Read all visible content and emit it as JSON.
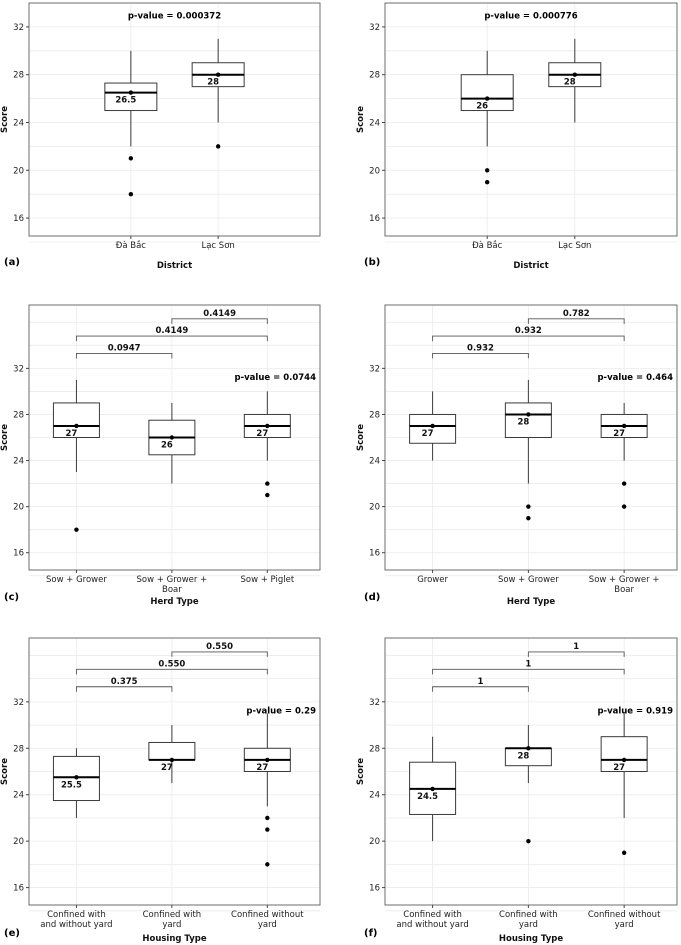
{
  "chart_data": [
    {
      "panel": "(a)",
      "type": "box",
      "title": "",
      "xlabel": "District",
      "ylabel": "Score",
      "ylim": [
        14.5,
        34
      ],
      "yticks": [
        16,
        20,
        24,
        28,
        32
      ],
      "pvalue": "p-value = 0.000372",
      "categories": [
        {
          "label": "Đà Bắc",
          "q1": 25,
          "median": 26.5,
          "q3": 27.3,
          "whisker_low": 22,
          "whisker_high": 30,
          "mean": 26.5,
          "median_label": "26.5",
          "outliers": [
            21,
            18
          ]
        },
        {
          "label": "Lạc Sơn",
          "q1": 27,
          "median": 28,
          "q3": 29,
          "whisker_low": 24,
          "whisker_high": 31,
          "mean": 28,
          "median_label": "28",
          "outliers": [
            22
          ]
        }
      ],
      "brackets": []
    },
    {
      "panel": "(b)",
      "type": "box",
      "title": "",
      "xlabel": "District",
      "ylabel": "Score",
      "ylim": [
        14.5,
        34
      ],
      "yticks": [
        16,
        20,
        24,
        28,
        32
      ],
      "pvalue": "p-value = 0.000776",
      "categories": [
        {
          "label": "Đà Bắc",
          "q1": 25,
          "median": 26,
          "q3": 28,
          "whisker_low": 22,
          "whisker_high": 30,
          "mean": 26,
          "median_label": "26",
          "outliers": [
            20,
            19
          ]
        },
        {
          "label": "Lạc Sơn",
          "q1": 27,
          "median": 28,
          "q3": 29,
          "whisker_low": 24,
          "whisker_high": 31,
          "mean": 28,
          "median_label": "28",
          "outliers": []
        }
      ],
      "brackets": []
    },
    {
      "panel": "(c)",
      "type": "box",
      "title": "",
      "xlabel": "Herd Type",
      "ylabel": "Score",
      "ylim": [
        14.5,
        37.5
      ],
      "yticks": [
        16,
        20,
        24,
        28,
        32
      ],
      "pvalue": "p-value = 0.0744",
      "categories": [
        {
          "label": "Sow + Grower",
          "q1": 26,
          "median": 27,
          "q3": 29,
          "whisker_low": 23,
          "whisker_high": 31,
          "mean": 27,
          "median_label": "27",
          "outliers": [
            18
          ]
        },
        {
          "label": "Sow + Grower + Boar",
          "q1": 24.5,
          "median": 26,
          "q3": 27.5,
          "whisker_low": 22,
          "whisker_high": 29,
          "mean": 26,
          "median_label": "26",
          "outliers": []
        },
        {
          "label": "Sow + Piglet",
          "q1": 26,
          "median": 27,
          "q3": 28,
          "whisker_low": 24,
          "whisker_high": 30,
          "mean": 27,
          "median_label": "27",
          "outliers": [
            22,
            21
          ]
        }
      ],
      "brackets": [
        {
          "from": 0,
          "to": 1,
          "y": 33.3,
          "label": "0.0947"
        },
        {
          "from": 0,
          "to": 2,
          "y": 34.8,
          "label": "0.4149"
        },
        {
          "from": 1,
          "to": 2,
          "y": 36.3,
          "label": "0.4149"
        }
      ]
    },
    {
      "panel": "(d)",
      "type": "box",
      "title": "",
      "xlabel": "Herd Type",
      "ylabel": "Score",
      "ylim": [
        14.5,
        37.5
      ],
      "yticks": [
        16,
        20,
        24,
        28,
        32
      ],
      "pvalue": "p-value = 0.464",
      "categories": [
        {
          "label": "Grower",
          "q1": 25.5,
          "median": 27,
          "q3": 28,
          "whisker_low": 24,
          "whisker_high": 30,
          "mean": 27,
          "median_label": "27",
          "outliers": []
        },
        {
          "label": "Sow + Grower",
          "q1": 26,
          "median": 28,
          "q3": 29,
          "whisker_low": 22,
          "whisker_high": 31,
          "mean": 28,
          "median_label": "28",
          "outliers": [
            20,
            19
          ]
        },
        {
          "label": "Sow + Grower + Boar",
          "q1": 26,
          "median": 27,
          "q3": 28,
          "whisker_low": 24,
          "whisker_high": 29,
          "mean": 27,
          "median_label": "27",
          "outliers": [
            22,
            20
          ]
        }
      ],
      "brackets": [
        {
          "from": 0,
          "to": 1,
          "y": 33.3,
          "label": "0.932"
        },
        {
          "from": 0,
          "to": 2,
          "y": 34.8,
          "label": "0.932"
        },
        {
          "from": 1,
          "to": 2,
          "y": 36.3,
          "label": "0.782"
        }
      ]
    },
    {
      "panel": "(e)",
      "type": "box",
      "title": "",
      "xlabel": "Housing Type",
      "ylabel": "Score",
      "ylim": [
        14.5,
        37.5
      ],
      "yticks": [
        16,
        20,
        24,
        28,
        32
      ],
      "pvalue": "p-value = 0.29",
      "categories": [
        {
          "label": "Confined with and without yard",
          "q1": 23.5,
          "median": 25.5,
          "q3": 27.3,
          "whisker_low": 22,
          "whisker_high": 28,
          "mean": 25.5,
          "median_label": "25.5",
          "outliers": []
        },
        {
          "label": "Confined with yard",
          "q1": 27,
          "median": 27,
          "q3": 28.5,
          "whisker_low": 25,
          "whisker_high": 30,
          "mean": 27,
          "median_label": "27",
          "outliers": []
        },
        {
          "label": "Confined without yard",
          "q1": 26,
          "median": 27,
          "q3": 28,
          "whisker_low": 23,
          "whisker_high": 31,
          "mean": 27,
          "median_label": "27",
          "outliers": [
            22,
            21,
            18
          ]
        }
      ],
      "brackets": [
        {
          "from": 0,
          "to": 1,
          "y": 33.3,
          "label": "0.375"
        },
        {
          "from": 0,
          "to": 2,
          "y": 34.8,
          "label": "0.550"
        },
        {
          "from": 1,
          "to": 2,
          "y": 36.3,
          "label": "0.550"
        }
      ]
    },
    {
      "panel": "(f)",
      "type": "box",
      "title": "",
      "xlabel": "Housing Type",
      "ylabel": "Score",
      "ylim": [
        14.5,
        37.5
      ],
      "yticks": [
        16,
        20,
        24,
        28,
        32
      ],
      "pvalue": "p-value = 0.919",
      "categories": [
        {
          "label": "Confined with and without yard",
          "q1": 22.3,
          "median": 24.5,
          "q3": 26.8,
          "whisker_low": 20,
          "whisker_high": 29,
          "mean": 24.5,
          "median_label": "24.5",
          "outliers": []
        },
        {
          "label": "Confined with yard",
          "q1": 26.5,
          "median": 28,
          "q3": 28,
          "whisker_low": 25,
          "whisker_high": 30,
          "mean": 28,
          "median_label": "28",
          "outliers": [
            20
          ]
        },
        {
          "label": "Confined without yard",
          "q1": 26,
          "median": 27,
          "q3": 29,
          "whisker_low": 22,
          "whisker_high": 31,
          "mean": 27,
          "median_label": "27",
          "outliers": [
            19
          ]
        }
      ],
      "brackets": [
        {
          "from": 0,
          "to": 1,
          "y": 33.3,
          "label": "1"
        },
        {
          "from": 0,
          "to": 2,
          "y": 34.8,
          "label": "1"
        },
        {
          "from": 1,
          "to": 2,
          "y": 36.3,
          "label": "1"
        }
      ]
    }
  ],
  "tick_labels_multiline": {
    "Sow + Grower + Boar": [
      "Sow + Grower +",
      "Boar"
    ],
    "Confined with and without yard": [
      "Confined with",
      "and without yard"
    ],
    "Confined with yard": [
      "Confined with",
      "yard"
    ],
    "Confined without yard": [
      "Confined without",
      "yard"
    ]
  }
}
